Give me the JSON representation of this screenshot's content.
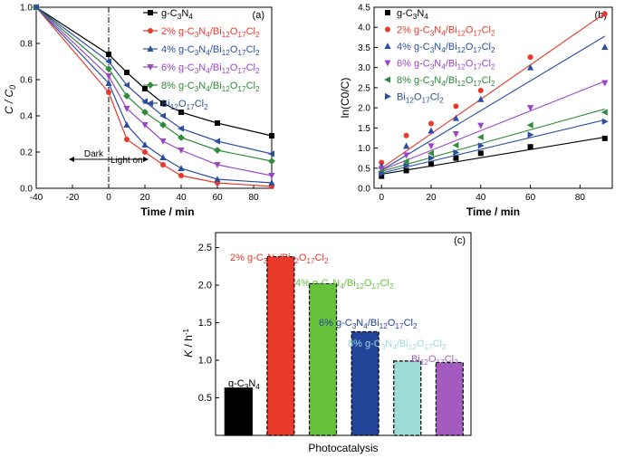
{
  "chart_data": [
    {
      "type": "line",
      "panel": "(a)",
      "xlabel": "Time / min",
      "ylabel_main": "C / C",
      "ylabel_sub": "0",
      "xlim": [
        -40,
        90
      ],
      "ylim": [
        0.0,
        1.0
      ],
      "xticks": [
        -40,
        -20,
        0,
        20,
        40,
        60,
        80
      ],
      "yticks": [
        "0.0",
        "0.2",
        "0.4",
        "0.6",
        "0.8",
        "1.0"
      ],
      "legend_position": "top-right",
      "annotations": {
        "dark": "Dark",
        "light": "Light on"
      },
      "x": [
        -40,
        0,
        10,
        20,
        30,
        40,
        60,
        90
      ],
      "series": [
        {
          "name": "g-C3N4",
          "color": "#000000",
          "marker": "square",
          "values": [
            1.0,
            0.74,
            0.64,
            0.55,
            0.47,
            0.42,
            0.36,
            0.29
          ]
        },
        {
          "name": "2% g-C3N4/Bi12O17Cl2",
          "color": "#e8392b",
          "marker": "circle",
          "values": [
            1.0,
            0.53,
            0.27,
            0.2,
            0.13,
            0.07,
            0.03,
            0.01
          ]
        },
        {
          "name": "4% g-C3N4/Bi12O17Cl2",
          "color": "#2b4ea1",
          "marker": "triangle-up",
          "values": [
            1.0,
            0.58,
            0.35,
            0.24,
            0.17,
            0.11,
            0.05,
            0.03
          ]
        },
        {
          "name": "6% g-C3N4/Bi12O17Cl2",
          "color": "#9b45c6",
          "marker": "triangle-down",
          "values": [
            1.0,
            0.62,
            0.44,
            0.35,
            0.26,
            0.21,
            0.13,
            0.07
          ]
        },
        {
          "name": "8% g-C3N4/Bi12O17Cl2",
          "color": "#2e8b3a",
          "marker": "diamond",
          "values": [
            1.0,
            0.66,
            0.51,
            0.42,
            0.35,
            0.28,
            0.21,
            0.15
          ]
        },
        {
          "name": "Bi12O17Cl2",
          "color": "#2b4ea1",
          "marker": "triangle-left",
          "values": [
            1.0,
            0.7,
            0.57,
            0.48,
            0.4,
            0.33,
            0.26,
            0.19
          ]
        }
      ]
    },
    {
      "type": "scatter",
      "panel": "(b)",
      "xlabel": "Time / min",
      "ylabel": "ln(C0/C)",
      "xlim": [
        -3,
        93
      ],
      "ylim": [
        0.0,
        4.5
      ],
      "xticks": [
        0,
        20,
        40,
        60,
        80
      ],
      "yticks": [
        "0.0",
        "0.5",
        "1.0",
        "1.5",
        "2.0",
        "2.5",
        "3.0",
        "3.5",
        "4.0",
        "4.5"
      ],
      "legend_position": "top-left",
      "x": [
        0,
        10,
        20,
        30,
        40,
        60,
        90
      ],
      "series": [
        {
          "name": "g-C3N4",
          "color": "#000000",
          "marker": "square",
          "values": [
            0.3,
            0.44,
            0.6,
            0.75,
            0.87,
            1.03,
            1.24
          ],
          "fit": [
            0.35,
            1.27
          ]
        },
        {
          "name": "2% g-C3N4/Bi12O17Cl2",
          "color": "#e8392b",
          "marker": "circle",
          "values": [
            0.64,
            1.31,
            1.61,
            2.04,
            2.43,
            3.26,
            4.33
          ],
          "fit": [
            0.5,
            4.35
          ]
        },
        {
          "name": "4% g-C3N4/Bi12O17Cl2",
          "color": "#2b4ea1",
          "marker": "triangle-up",
          "values": [
            0.55,
            1.05,
            1.43,
            1.74,
            2.21,
            3.0,
            3.51
          ],
          "fit": [
            0.45,
            3.78
          ]
        },
        {
          "name": "6% g-C3N4/Bi12O17Cl2",
          "color": "#9b45c6",
          "marker": "triangle-down",
          "values": [
            0.48,
            0.82,
            1.05,
            1.35,
            1.56,
            2.0,
            2.62
          ],
          "fit": [
            0.45,
            2.66
          ]
        },
        {
          "name": "8% g-C3N4/Bi12O17Cl2",
          "color": "#2e8b3a",
          "marker": "triangle-left",
          "values": [
            0.41,
            0.67,
            0.87,
            1.07,
            1.27,
            1.57,
            1.89
          ],
          "fit": [
            0.42,
            1.97
          ]
        },
        {
          "name": "Bi12O17Cl2",
          "color": "#2b4ea1",
          "marker": "triangle-right",
          "values": [
            0.36,
            0.57,
            0.75,
            0.89,
            1.06,
            1.33,
            1.66
          ],
          "fit": [
            0.38,
            1.7
          ]
        }
      ]
    },
    {
      "type": "bar",
      "panel": "(c)",
      "xlabel": "Photocatalysis",
      "ylabel_main": "K",
      "ylabel_unit": "h",
      "ylim": [
        0.0,
        2.7
      ],
      "yticks": [
        "0.5",
        "1.0",
        "1.5",
        "2.0",
        "2.5"
      ],
      "categories": [
        "g-C3N4",
        "2% g-C3N4/Bi12O17Cl2",
        "4% g-C3N4/Bi12O17Cl2",
        "6% g-C3N4/Bi12O17Cl2",
        "8% g-C3N4/Bi12O17Cl2",
        "Bi12O17Cl2"
      ],
      "values": [
        0.63,
        2.38,
        2.02,
        1.38,
        0.99,
        0.97
      ],
      "colors": [
        "#000000",
        "#e8392b",
        "#66c23a",
        "#24449a",
        "#9cdcd6",
        "#a45bbf"
      ],
      "label_colors": [
        "#000000",
        "#e8392b",
        "#66c23a",
        "#24449a",
        "#9cdcd6",
        "#a45bbf"
      ]
    }
  ]
}
